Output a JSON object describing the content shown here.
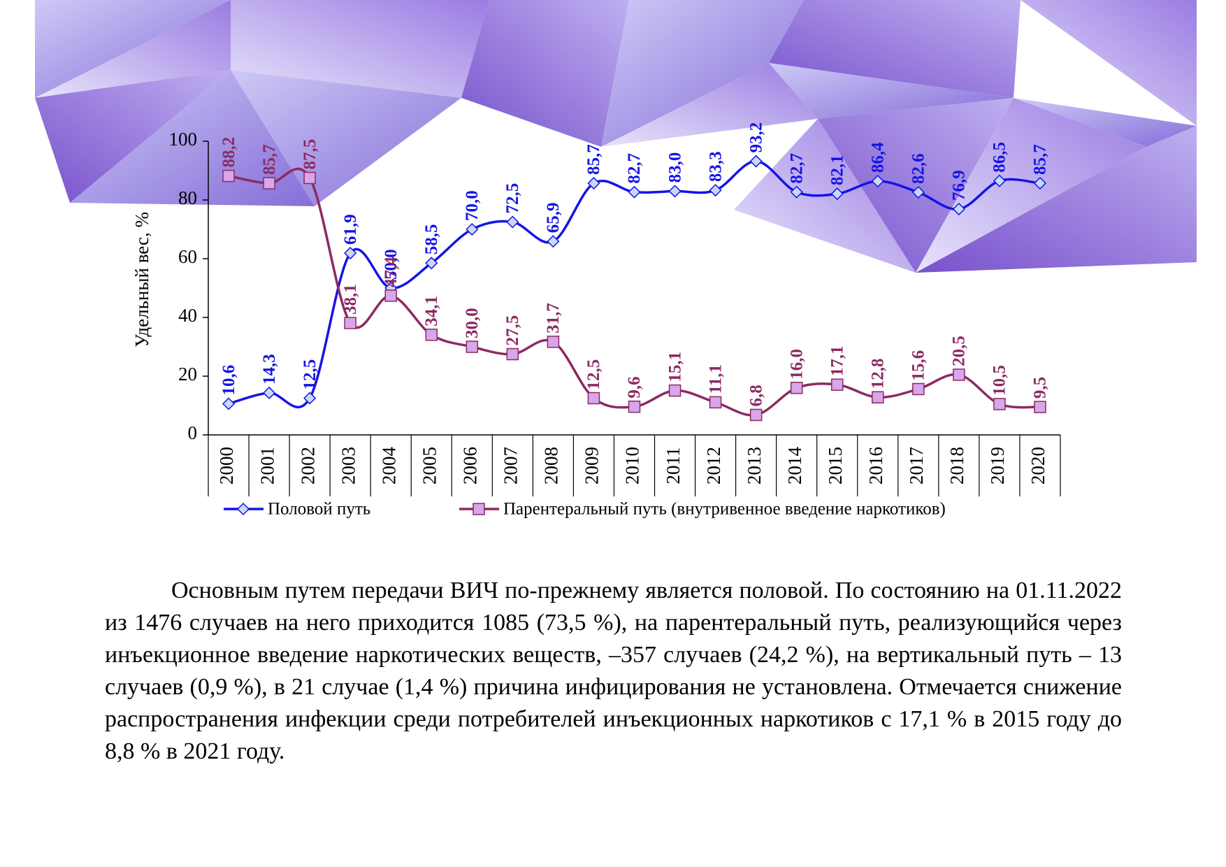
{
  "chart_data": {
    "type": "line",
    "y_label": "Удельный вес, %",
    "categories": [
      "2000",
      "2001",
      "2002",
      "2003",
      "2004",
      "2005",
      "2006",
      "2007",
      "2008",
      "2009",
      "2010",
      "2011",
      "2012",
      "2013",
      "2014",
      "2015",
      "2016",
      "2017",
      "2018",
      "2019",
      "2020"
    ],
    "series": [
      {
        "name": "Половой путь",
        "color": "#1414e6",
        "marker": "diamond",
        "values": [
          10.6,
          14.3,
          12.5,
          61.9,
          50.0,
          58.5,
          70.0,
          72.5,
          65.9,
          85.7,
          82.7,
          83.0,
          83.3,
          93.2,
          82.7,
          82.1,
          86.4,
          82.6,
          76.9,
          86.5,
          85.7
        ],
        "value_labels": [
          "10,6",
          "14,3",
          "12,5",
          "61,9",
          "50,0",
          "58,5",
          "70,0",
          "72,5",
          "65,9",
          "85,7",
          "82,7",
          "83,0",
          "83,3",
          "93,2",
          "82,7",
          "82,1",
          "86,4",
          "82,6",
          "76,9",
          "86,5",
          "85,7"
        ]
      },
      {
        "name": "Парентеральный путь (внутривенное введение наркотиков)",
        "color": "#8c2a62",
        "marker": "square",
        "values": [
          88.2,
          85.7,
          87.5,
          38.1,
          47.4,
          34.1,
          30.0,
          27.5,
          31.7,
          12.5,
          9.6,
          15.1,
          11.1,
          6.8,
          16.0,
          17.1,
          12.8,
          15.6,
          20.5,
          10.5,
          9.5
        ],
        "value_labels": [
          "88,2",
          "85,7",
          "87,5",
          "38,1",
          "47,4",
          "34,1",
          "30,0",
          "27,5",
          "31,7",
          "12,5",
          "9,6",
          "15,1",
          "11,1",
          "6,8",
          "16,0",
          "17,1",
          "12,8",
          "15,6",
          "20,5",
          "10,5",
          "9,5"
        ]
      }
    ],
    "ylim": [
      0,
      100
    ],
    "yticks": [
      0,
      20,
      40,
      60,
      80,
      100
    ],
    "grid": false,
    "legend": "bottom"
  },
  "paragraph": "Основным путем передачи ВИЧ по-прежнему является половой. По состоянию на 01.11.2022 из 1476 случаев на него приходится 1085 (73,5 %), на парентеральный путь, реализующийся через инъекционное введение наркотических веществ, –357 случаев (24,2 %), на вертикальный путь – 13 случаев (0,9 %), в 21 случае (1,4 %) причина инфицирования не установлена. Отмечается снижение распространения инфекции среди потребителей инъекционных наркотиков с 17,1 % в 2015 году до 8,8 % в 2021 году."
}
